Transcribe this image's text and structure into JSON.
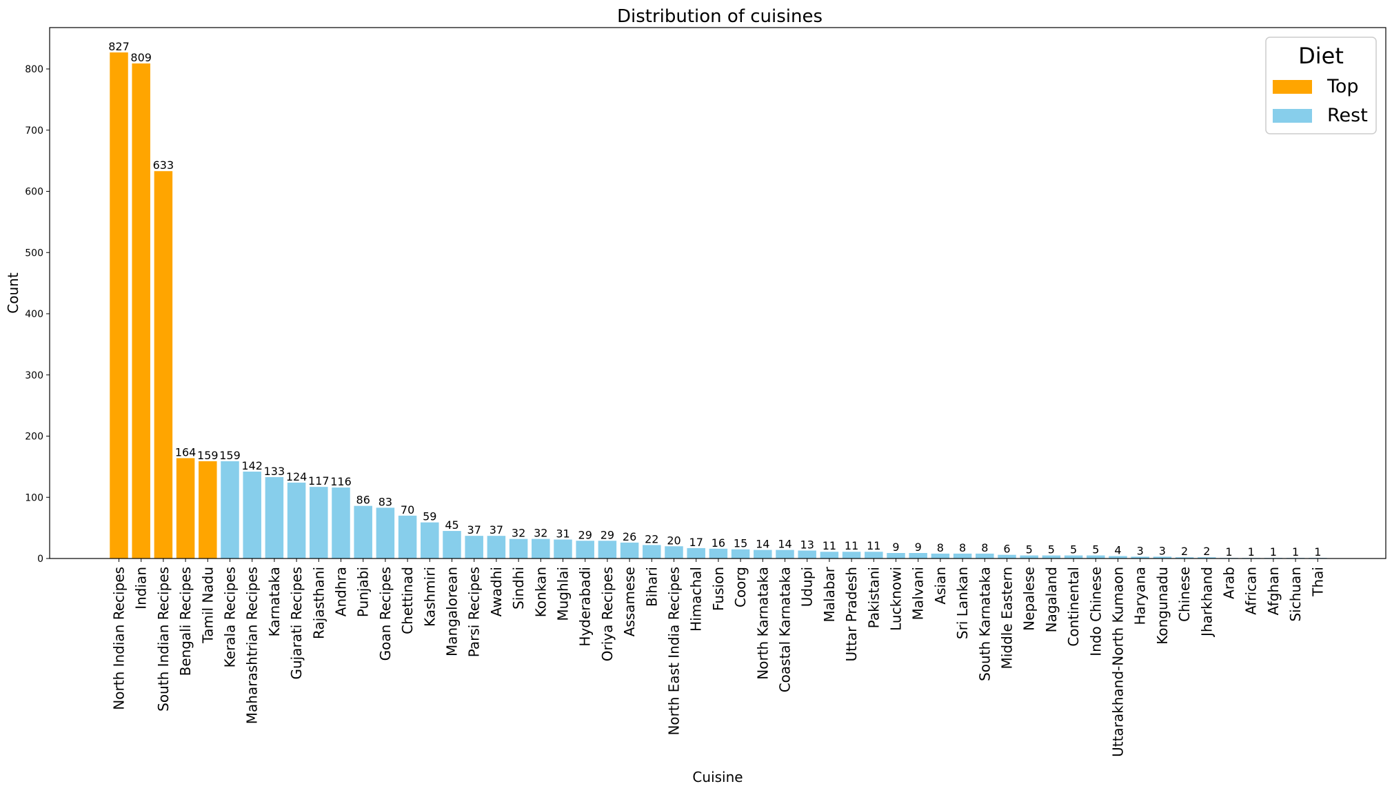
{
  "chart_data": {
    "type": "bar",
    "title": "Distribution of cuisines",
    "xlabel": "Cuisine",
    "ylabel": "Count",
    "ylim": [
      0,
      870
    ],
    "yticks": [
      0,
      100,
      200,
      300,
      400,
      500,
      600,
      700,
      800
    ],
    "grid": false,
    "legend": {
      "title": "Diet",
      "position": "top-right",
      "entries": [
        {
          "name": "Top",
          "color": "#FFA500"
        },
        {
          "name": "Rest",
          "color": "#87CEEB"
        }
      ]
    },
    "categories": [
      "North Indian Recipes",
      "Indian",
      "South Indian Recipes",
      "Bengali Recipes",
      "Tamil Nadu",
      "Kerala Recipes",
      "Maharashtrian Recipes",
      "Karnataka",
      "Gujarati Recipes",
      "Rajasthani",
      "Andhra",
      "Punjabi",
      "Goan Recipes",
      "Chettinad",
      "Kashmiri",
      "Mangalorean",
      "Parsi Recipes",
      "Awadhi",
      "Sindhi",
      "Konkan",
      "Mughlai",
      "Hyderabadi",
      "Oriya Recipes",
      "Assamese",
      "Bihari",
      "North East India Recipes",
      "Himachal",
      "Fusion",
      "Coorg",
      "North Karnataka",
      "Coastal Karnataka",
      "Udupi",
      "Malabar",
      "Uttar Pradesh",
      "Pakistani",
      "Lucknowi",
      "Malvani",
      "Asian",
      "Sri Lankan",
      "South Karnataka",
      "Middle Eastern",
      "Nepalese",
      "Nagaland",
      "Continental",
      "Indo Chinese",
      "Uttarakhand-North Kumaon",
      "Haryana",
      "Kongunadu",
      "Chinese",
      "Jharkhand",
      "Arab",
      "African",
      "Afghan",
      "Sichuan",
      "Thai"
    ],
    "values": [
      827,
      809,
      633,
      164,
      159,
      159,
      142,
      133,
      124,
      117,
      116,
      86,
      83,
      70,
      59,
      45,
      37,
      37,
      32,
      32,
      31,
      29,
      29,
      26,
      22,
      20,
      17,
      16,
      15,
      14,
      14,
      13,
      11,
      11,
      11,
      9,
      9,
      8,
      8,
      8,
      6,
      5,
      5,
      5,
      5,
      4,
      3,
      3,
      2,
      2,
      1,
      1,
      1,
      1,
      1
    ],
    "groups": [
      "Top",
      "Top",
      "Top",
      "Top",
      "Top",
      "Rest",
      "Rest",
      "Rest",
      "Rest",
      "Rest",
      "Rest",
      "Rest",
      "Rest",
      "Rest",
      "Rest",
      "Rest",
      "Rest",
      "Rest",
      "Rest",
      "Rest",
      "Rest",
      "Rest",
      "Rest",
      "Rest",
      "Rest",
      "Rest",
      "Rest",
      "Rest",
      "Rest",
      "Rest",
      "Rest",
      "Rest",
      "Rest",
      "Rest",
      "Rest",
      "Rest",
      "Rest",
      "Rest",
      "Rest",
      "Rest",
      "Rest",
      "Rest",
      "Rest",
      "Rest",
      "Rest",
      "Rest",
      "Rest",
      "Rest",
      "Rest",
      "Rest",
      "Rest",
      "Rest",
      "Rest",
      "Rest",
      "Rest"
    ],
    "colors": {
      "Top": "#FFA500",
      "Rest": "#87CEEB",
      "axis": "#000000"
    }
  }
}
